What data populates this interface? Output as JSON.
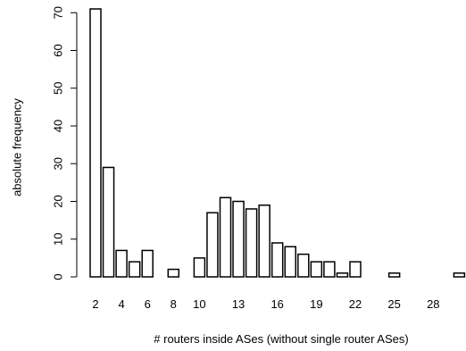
{
  "chart_data": {
    "type": "bar",
    "categories": [
      2,
      3,
      4,
      5,
      6,
      7,
      8,
      9,
      10,
      11,
      12,
      13,
      14,
      15,
      16,
      17,
      18,
      19,
      20,
      21,
      22,
      23,
      24,
      25,
      26,
      27,
      28,
      29,
      30
    ],
    "values": [
      71,
      29,
      7,
      4,
      7,
      0,
      2,
      0,
      5,
      17,
      21,
      20,
      18,
      19,
      9,
      8,
      6,
      4,
      4,
      1,
      4,
      0,
      0,
      1,
      0,
      0,
      0,
      0,
      1
    ],
    "x_tick_labels": [
      "2",
      "4",
      "6",
      "8",
      "10",
      "13",
      "16",
      "19",
      "22",
      "25",
      "28"
    ],
    "x_tick_categories": [
      2,
      4,
      6,
      8,
      10,
      13,
      16,
      19,
      22,
      25,
      28
    ],
    "y_ticks": [
      "0",
      "10",
      "20",
      "30",
      "40",
      "50",
      "60",
      "70"
    ],
    "ylim": [
      0,
      71
    ],
    "xlabel": "# routers inside ASes (without single router ASes)",
    "ylabel": "absolute frequency",
    "grid": false,
    "legend": "none"
  }
}
